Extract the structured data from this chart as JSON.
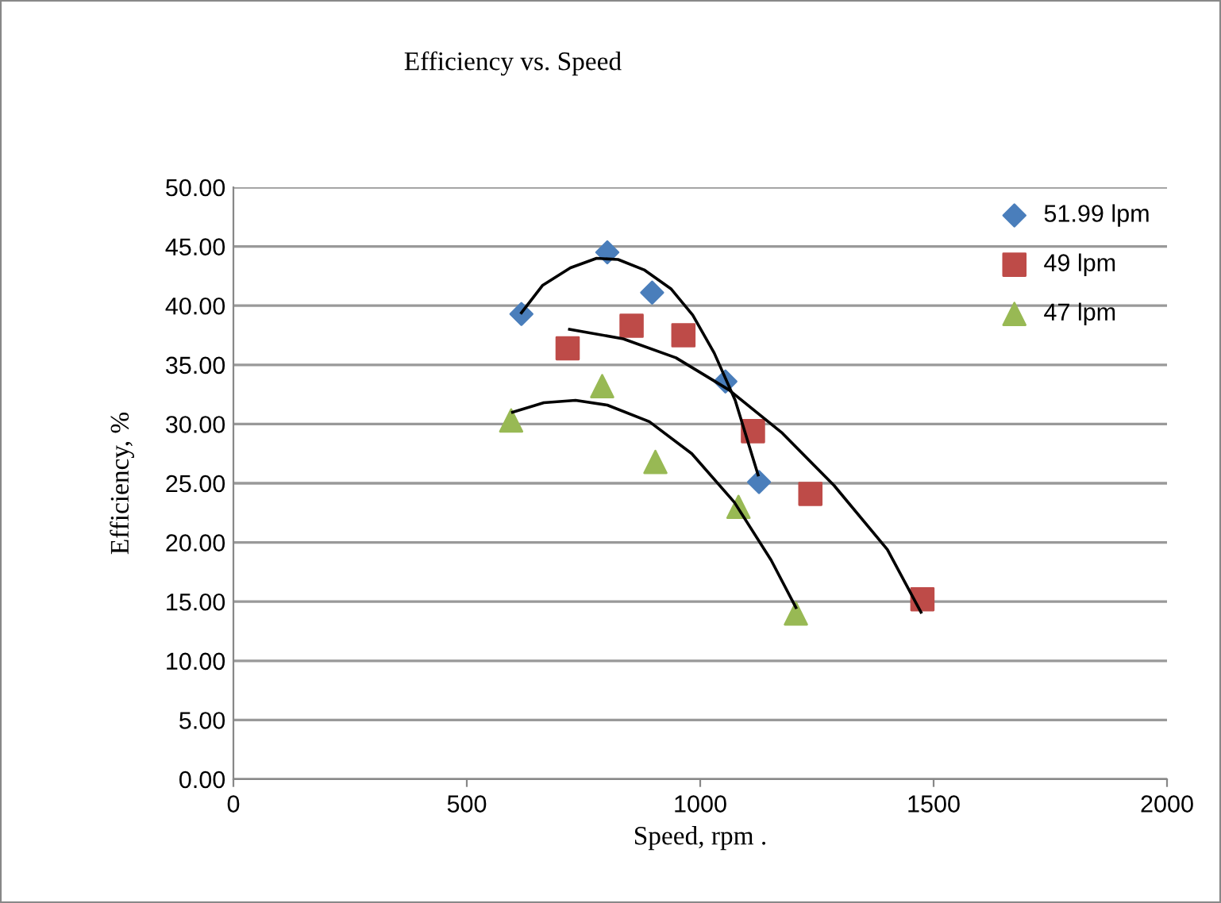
{
  "chart_data": {
    "type": "scatter",
    "title": "Efficiency vs. Speed",
    "xlabel": "Speed, rpm .",
    "ylabel": "Efficiency, %",
    "xlim": [
      0,
      2000
    ],
    "xticks": [
      0,
      500,
      1000,
      1500,
      2000
    ],
    "ylim": [
      0,
      50
    ],
    "yticks": [
      {
        "value": 0,
        "label": "0.00"
      },
      {
        "value": 5,
        "label": "5.00"
      },
      {
        "value": 10,
        "label": "10.00"
      },
      {
        "value": 15,
        "label": "15.00"
      },
      {
        "value": 20,
        "label": "20.00"
      },
      {
        "value": 25,
        "label": "25.00"
      },
      {
        "value": 30,
        "label": "30.00"
      },
      {
        "value": 35,
        "label": "35.00"
      },
      {
        "value": 40,
        "label": "40.00"
      },
      {
        "value": 45,
        "label": "45.00"
      },
      {
        "value": 50,
        "label": "50.00"
      }
    ],
    "grid": "y",
    "legend": "top right",
    "series": [
      {
        "name": "51.99 lpm",
        "color": "#4a7ebb",
        "marker": "diamond",
        "x": [
          617,
          801,
          897,
          1054,
          1126
        ],
        "values": [
          39.3,
          44.5,
          41.1,
          33.6,
          25.1
        ]
      },
      {
        "name": "49 lpm",
        "color": "#be4b48",
        "marker": "square",
        "x": [
          716,
          853,
          964,
          1113,
          1236,
          1476
        ],
        "values": [
          36.4,
          38.3,
          37.5,
          29.4,
          24.1,
          15.2
        ]
      },
      {
        "name": "47 lpm",
        "color": "#98b954",
        "marker": "triangle",
        "x": [
          595,
          790,
          904,
          1082,
          1205
        ],
        "values": [
          30.3,
          33.2,
          26.8,
          23.0,
          14.0
        ]
      },
      {
        "type": "line",
        "color": "#000000",
        "x": [
          617,
          662,
          722,
          778,
          824,
          881,
          938,
          984,
          1030,
          1075,
          1124
        ],
        "values": [
          39.4,
          41.7,
          43.2,
          44.0,
          43.9,
          43.0,
          41.4,
          39.2,
          36.0,
          32.0,
          25.7
        ]
      },
      {
        "type": "line",
        "color": "#000000",
        "x": [
          720,
          835,
          948,
          1061,
          1174,
          1287,
          1401,
          1473
        ],
        "values": [
          38.0,
          37.2,
          35.6,
          32.9,
          29.3,
          24.8,
          19.4,
          14.1
        ]
      },
      {
        "type": "line",
        "color": "#000000",
        "x": [
          598,
          665,
          733,
          801,
          891,
          982,
          1073,
          1152,
          1205
        ],
        "values": [
          31.0,
          31.8,
          32.0,
          31.6,
          30.2,
          27.5,
          23.4,
          18.5,
          14.5
        ]
      }
    ]
  }
}
